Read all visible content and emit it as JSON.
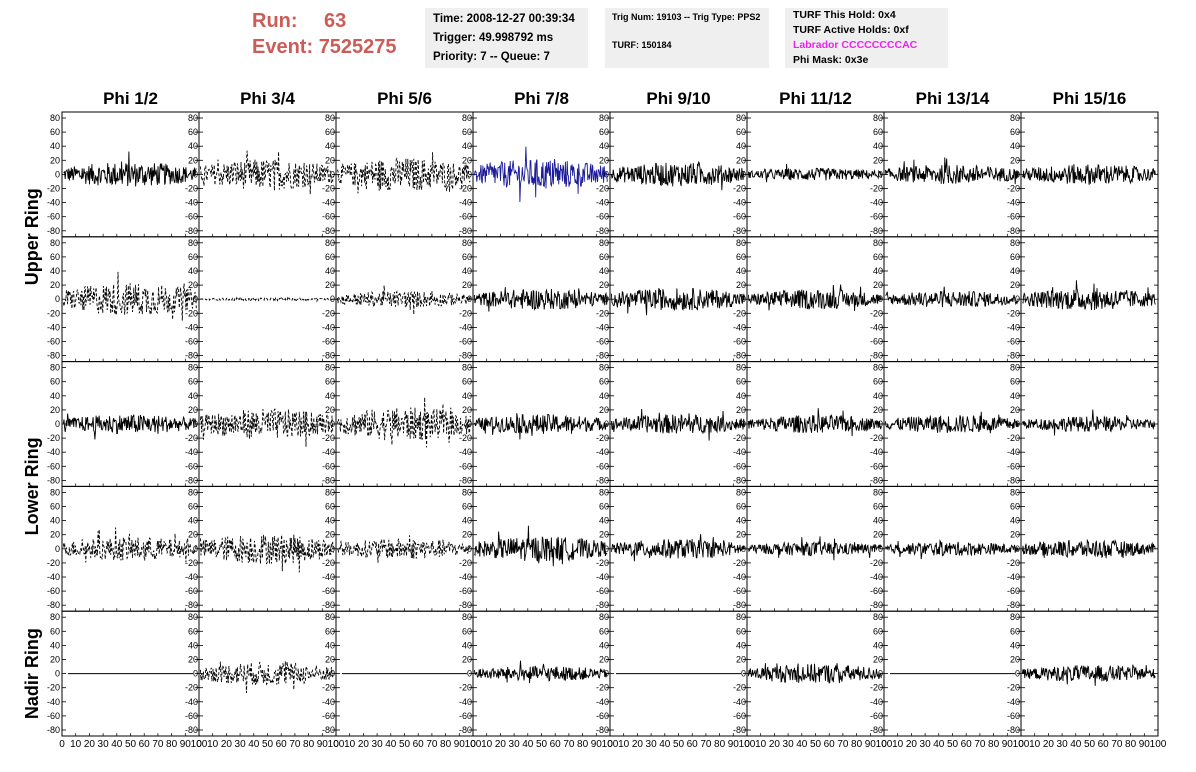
{
  "header": {
    "run_label": "Run:",
    "run_value": "63",
    "event_label": "Event:",
    "event_value": "7525275"
  },
  "info_panel_1": {
    "time": "Time: 2008-12-27 00:39:34",
    "trigger": "Trigger: 49.998792 ms",
    "priority": "Priority: 7 -- Queue: 7"
  },
  "info_panel_2": {
    "trig": "Trig Num: 19103 -- Trig Type: PPS2",
    "turf": "TURF: 150184"
  },
  "info_panel_3": {
    "hold": "TURF This Hold: 0x4",
    "active": "TURF Active Holds: 0xf",
    "labrador": "Labrador CCCCCCCCAC",
    "phimask": "Phi Mask: 0x3e"
  },
  "chart_data": {
    "type": "line",
    "columns": [
      "Phi 1/2",
      "Phi 3/4",
      "Phi 5/6",
      "Phi 7/8",
      "Phi 9/10",
      "Phi 11/12",
      "Phi 13/14",
      "Phi 15/16"
    ],
    "row_groups": [
      {
        "label": "Upper Ring",
        "rows": [
          0,
          1
        ]
      },
      {
        "label": "Lower Ring",
        "rows": [
          2,
          3
        ]
      },
      {
        "label": "Nadir Ring",
        "rows": [
          4
        ]
      }
    ],
    "ylim": [
      -80,
      80
    ],
    "xlim": [
      0,
      100
    ],
    "y_ticks": [
      "80",
      "60",
      "40",
      "20",
      "0",
      "-20",
      "-40",
      "-60",
      "-80"
    ],
    "x_ticks": [
      "0",
      "10",
      "20",
      "30",
      "40",
      "50",
      "60",
      "70",
      "80",
      "90",
      "100"
    ],
    "colors": {
      "normal": "#000000",
      "highlight": "#1a1a9a",
      "label": "#cc5c57",
      "magenta": "#ee22ee"
    },
    "panels": [
      [
        {
          "style": "solid",
          "amp": 18,
          "flat": false
        },
        {
          "style": "dashed",
          "amp": 22,
          "flat": false
        },
        {
          "style": "dashed",
          "amp": 24,
          "flat": false
        },
        {
          "style": "solid-blue",
          "amp": 22,
          "flat": false
        },
        {
          "style": "solid",
          "amp": 17,
          "flat": false
        },
        {
          "style": "solid",
          "amp": 9,
          "flat": false
        },
        {
          "style": "solid",
          "amp": 14,
          "flat": false
        },
        {
          "style": "solid",
          "amp": 15,
          "flat": false
        }
      ],
      [
        {
          "style": "dashed",
          "amp": 24,
          "flat": false
        },
        {
          "style": "dashed",
          "amp": 2,
          "flat": false
        },
        {
          "style": "dashed",
          "amp": 12,
          "flat": false
        },
        {
          "style": "solid",
          "amp": 15,
          "flat": false
        },
        {
          "style": "solid",
          "amp": 16,
          "flat": false
        },
        {
          "style": "solid",
          "amp": 14,
          "flat": false
        },
        {
          "style": "solid",
          "amp": 12,
          "flat": false
        },
        {
          "style": "solid",
          "amp": 16,
          "flat": false
        }
      ],
      [
        {
          "style": "solid",
          "amp": 14,
          "flat": false
        },
        {
          "style": "dashed",
          "amp": 22,
          "flat": false
        },
        {
          "style": "dashed",
          "amp": 24,
          "flat": false
        },
        {
          "style": "solid",
          "amp": 14,
          "flat": false
        },
        {
          "style": "solid",
          "amp": 14,
          "flat": false
        },
        {
          "style": "solid",
          "amp": 13,
          "flat": false
        },
        {
          "style": "solid",
          "amp": 13,
          "flat": false
        },
        {
          "style": "solid",
          "amp": 11,
          "flat": false
        }
      ],
      [
        {
          "style": "dashed",
          "amp": 17,
          "flat": false
        },
        {
          "style": "dashed",
          "amp": 22,
          "flat": false
        },
        {
          "style": "dashed",
          "amp": 15,
          "flat": false
        },
        {
          "style": "solid",
          "amp": 18,
          "flat": false
        },
        {
          "style": "solid",
          "amp": 14,
          "flat": false
        },
        {
          "style": "solid",
          "amp": 10,
          "flat": false
        },
        {
          "style": "solid",
          "amp": 10,
          "flat": false
        },
        {
          "style": "solid",
          "amp": 13,
          "flat": false
        }
      ],
      [
        {
          "style": "solid",
          "amp": 0,
          "flat": true
        },
        {
          "style": "dashed",
          "amp": 17,
          "flat": false
        },
        {
          "style": "dashed",
          "amp": 0,
          "flat": true
        },
        {
          "style": "solid",
          "amp": 11,
          "flat": false
        },
        {
          "style": "solid",
          "amp": 0,
          "flat": true
        },
        {
          "style": "solid",
          "amp": 14,
          "flat": false
        },
        {
          "style": "solid",
          "amp": 0,
          "flat": true
        },
        {
          "style": "solid",
          "amp": 12,
          "flat": false
        }
      ]
    ]
  }
}
